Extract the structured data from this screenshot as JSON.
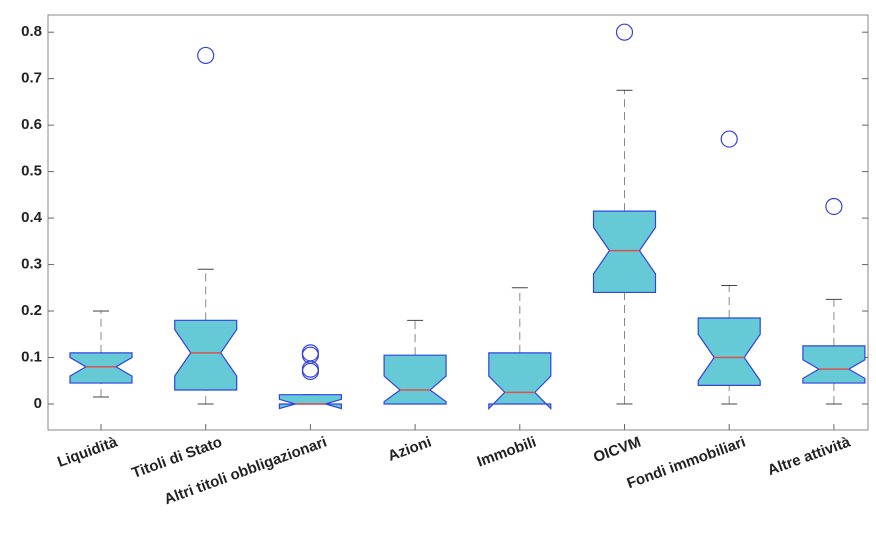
{
  "chart_data": {
    "type": "box",
    "categories": [
      "Liquidità",
      "Titoli di Stato",
      "Altri titoli obbligazionari",
      "Azioni",
      "Immobili",
      "OICVM",
      "Fondi immobiliari",
      "Altre attività"
    ],
    "boxes": [
      {
        "whisker_low": 0.015,
        "q1": 0.045,
        "notch_low": 0.06,
        "median": 0.08,
        "notch_high": 0.1,
        "q3": 0.11,
        "whisker_high": 0.2,
        "outliers": []
      },
      {
        "whisker_low": 0,
        "q1": 0.03,
        "notch_low": 0.06,
        "median": 0.11,
        "notch_high": 0.16,
        "q3": 0.18,
        "whisker_high": 0.29,
        "outliers": [
          0.75
        ]
      },
      {
        "whisker_low": 0,
        "q1": 0,
        "notch_low": -0.01,
        "median": 0,
        "notch_high": 0.01,
        "q3": 0.02,
        "whisker_high": 0.02,
        "outliers": [
          0.07,
          0.075,
          0.105,
          0.11
        ]
      },
      {
        "whisker_low": 0,
        "q1": 0,
        "notch_low": 0.005,
        "median": 0.03,
        "notch_high": 0.06,
        "q3": 0.105,
        "whisker_high": 0.18,
        "outliers": []
      },
      {
        "whisker_low": 0,
        "q1": 0,
        "notch_low": -0.01,
        "median": 0.025,
        "notch_high": 0.06,
        "q3": 0.11,
        "whisker_high": 0.25,
        "outliers": []
      },
      {
        "whisker_low": 0,
        "q1": 0.24,
        "notch_low": 0.28,
        "median": 0.33,
        "notch_high": 0.38,
        "q3": 0.415,
        "whisker_high": 0.675,
        "outliers": [
          0.8
        ]
      },
      {
        "whisker_low": 0,
        "q1": 0.04,
        "notch_low": 0.05,
        "median": 0.1,
        "notch_high": 0.15,
        "q3": 0.185,
        "whisker_high": 0.255,
        "outliers": [
          0.57
        ]
      },
      {
        "whisker_low": 0,
        "q1": 0.045,
        "notch_low": 0.055,
        "median": 0.075,
        "notch_high": 0.095,
        "q3": 0.125,
        "whisker_high": 0.225,
        "outliers": [
          0.425
        ]
      }
    ],
    "color": "#66c9d6",
    "edge_color": "#3344dd",
    "median_color": "#d9534f",
    "ylim": [
      -0.056,
      0.837
    ],
    "yticks": [
      0,
      0.1,
      0.2,
      0.3,
      0.4,
      0.5,
      0.6,
      0.7,
      0.8
    ]
  }
}
